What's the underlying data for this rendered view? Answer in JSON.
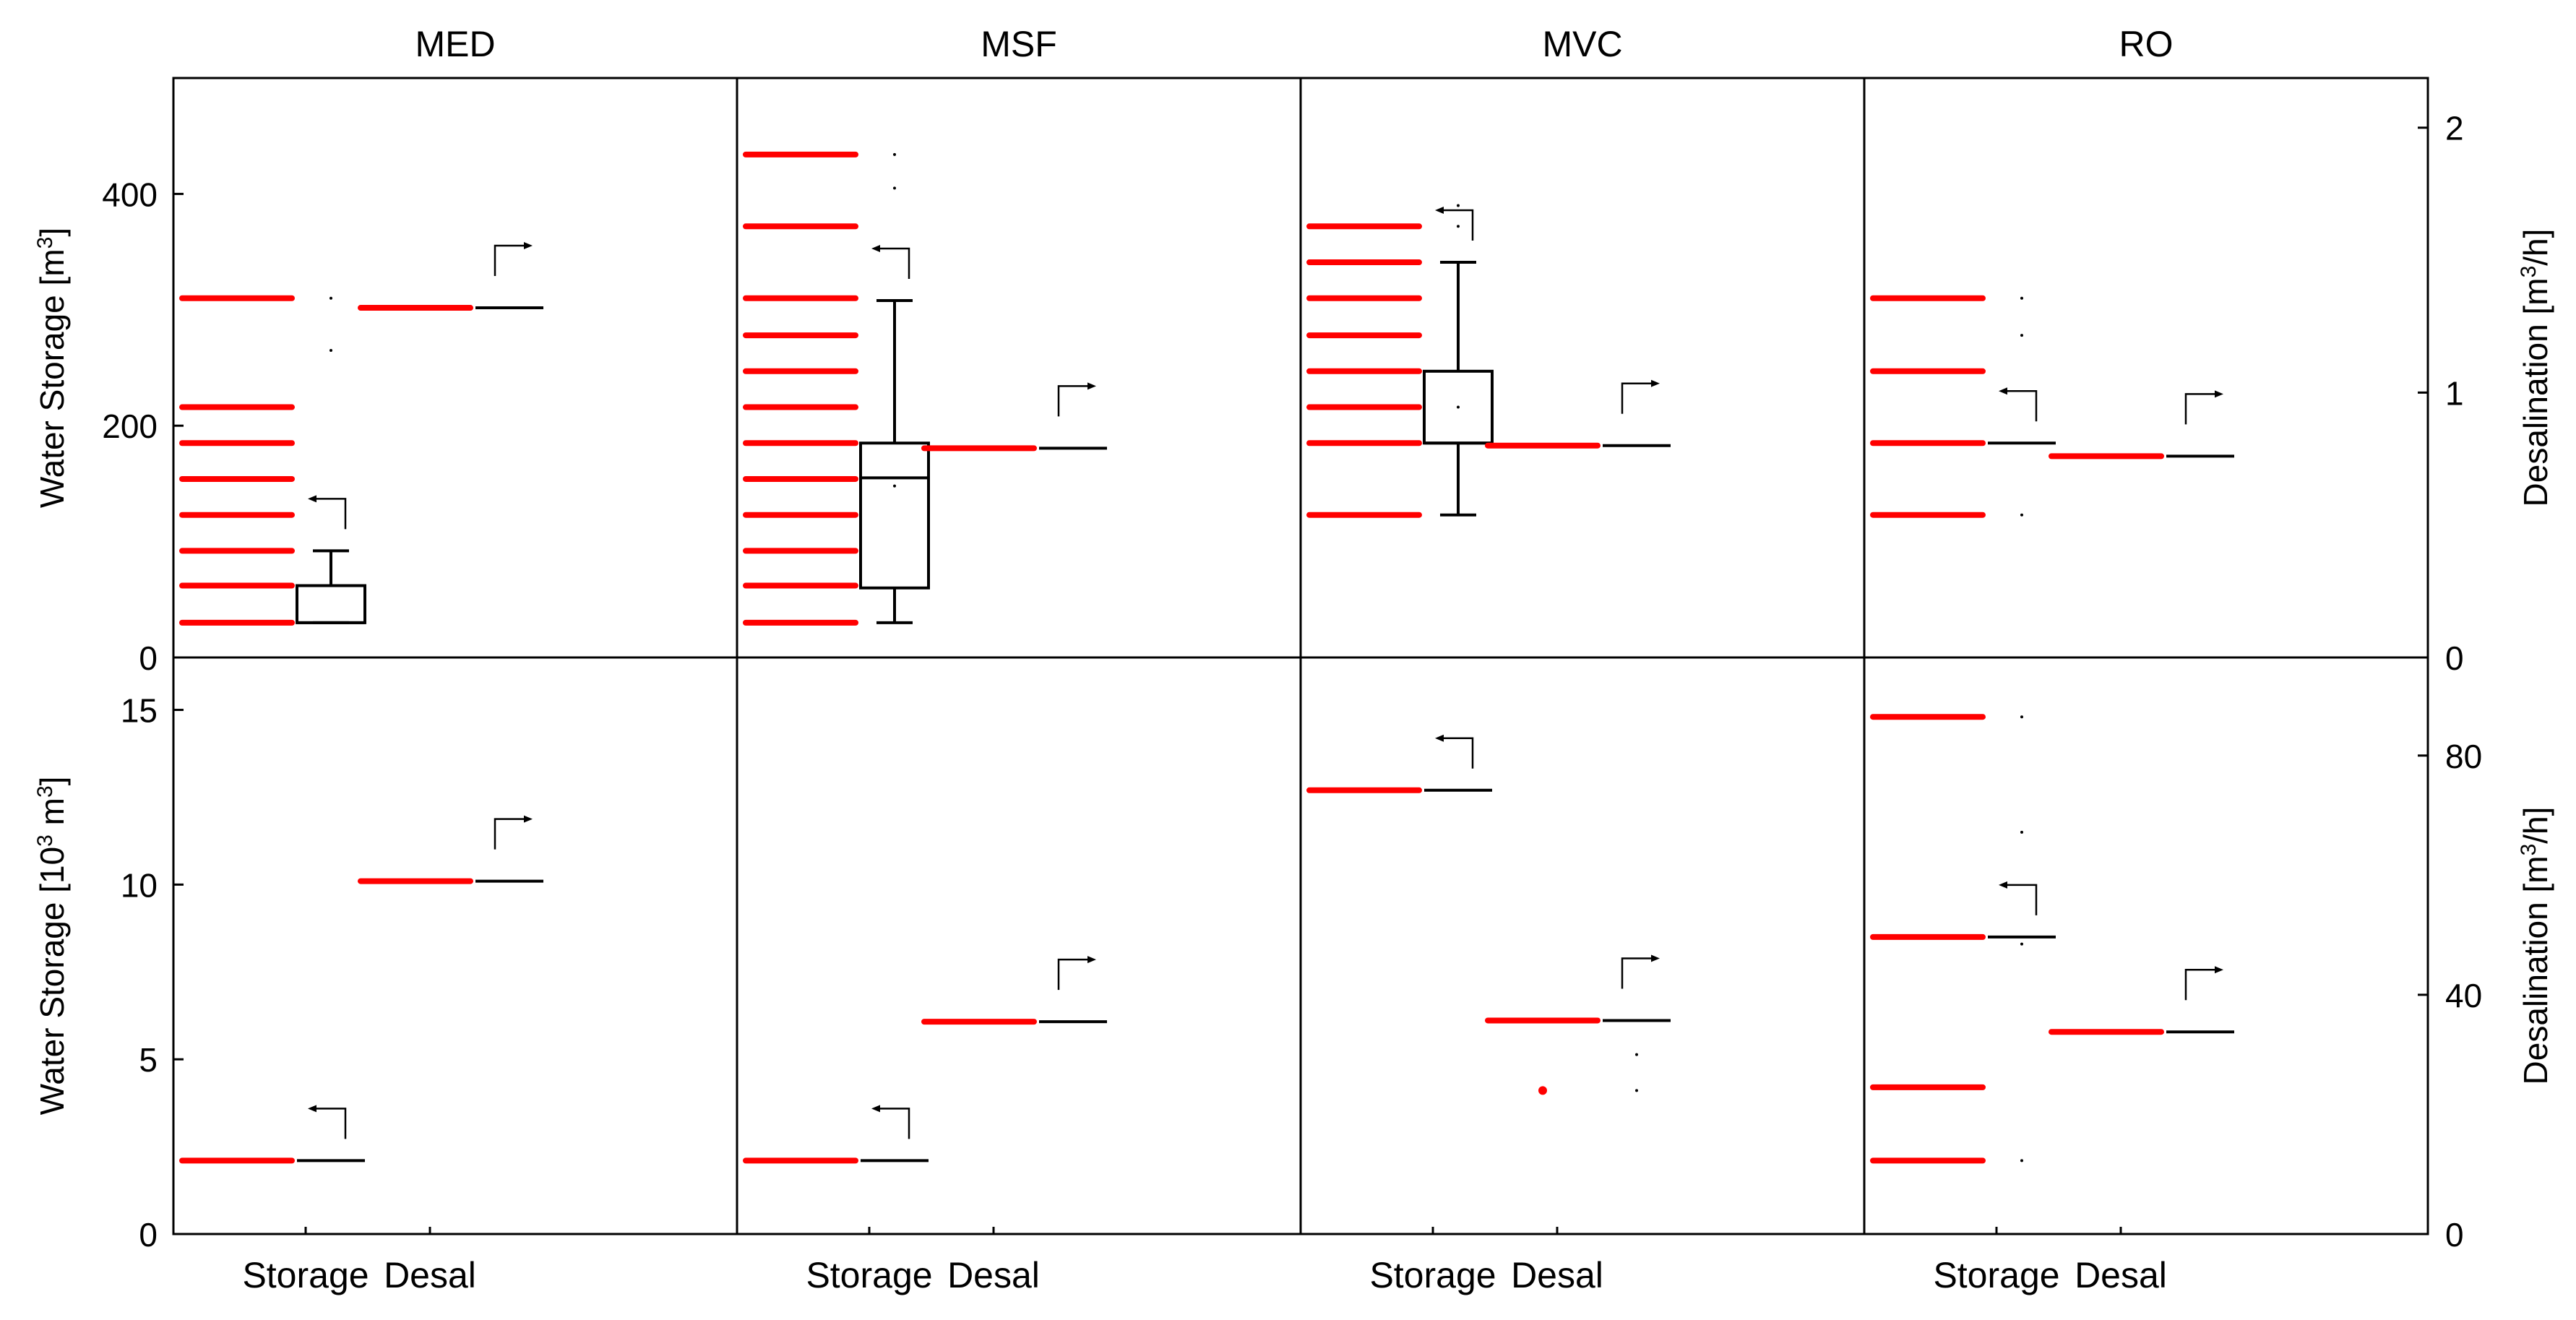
{
  "figure": {
    "columns": [
      "MED",
      "MSF",
      "MVC",
      "RO"
    ],
    "x_categories": [
      "Storage",
      "Desal"
    ],
    "colors": {
      "points": "#ff0000",
      "box": "#000000",
      "frame": "#000000",
      "background": "#ffffff"
    }
  },
  "chart_data": [
    {
      "type": "box",
      "row": "top",
      "left_axis": {
        "label_main": "Water Storage [m",
        "label_sup": "3",
        "label_end": "]",
        "ylim": [
          0,
          500
        ],
        "ticks": [
          0,
          200,
          400
        ]
      },
      "right_axis": {
        "label_main": "Desalination [m",
        "label_sup": "3",
        "label_end": "/h]",
        "ylim": [
          0,
          2.1875
        ],
        "ticks": [
          0,
          1,
          2
        ]
      },
      "panels": [
        {
          "column": "MED",
          "storage": {
            "points": [
              30,
              62,
              92,
              123,
              154,
              185,
              216,
              310
            ],
            "box": {
              "whisker_low": 30,
              "q1": 30,
              "median": 30,
              "q3": 62,
              "whisker_high": 92,
              "outliers": [
                265,
                310
              ]
            }
          },
          "desal": {
            "value": 1.32
          }
        },
        {
          "column": "MSF",
          "storage": {
            "points": [
              30,
              62,
              92,
              123,
              154,
              185,
              216,
              247,
              278,
              310,
              372,
              434
            ],
            "box": {
              "whisker_low": 30,
              "q1": 60,
              "median": 155,
              "q3": 185,
              "whisker_high": 308,
              "mean": 148,
              "outliers": [
                405,
                434
              ]
            }
          },
          "desal": {
            "value": 0.79
          }
        },
        {
          "column": "MVC",
          "storage": {
            "points": [
              123,
              185,
              216,
              247,
              278,
              310,
              341,
              372
            ],
            "box": {
              "whisker_low": 123,
              "q1": 185,
              "median": 185,
              "q3": 247,
              "whisker_high": 341,
              "mean": 216,
              "outliers": [
                372,
                390
              ]
            }
          },
          "desal": {
            "value": 0.8
          }
        },
        {
          "column": "RO",
          "storage": {
            "points": [
              123,
              185,
              247,
              310
            ],
            "box": {
              "whisker_low": 123,
              "q1": 185,
              "median": 185,
              "q3": 185,
              "whisker_high": 185,
              "outliers": [
                123,
                278,
                310
              ]
            }
          },
          "desal": {
            "value": 0.76
          }
        }
      ]
    },
    {
      "type": "box",
      "row": "bottom",
      "left_axis": {
        "label_main": "Water Storage [10",
        "label_sup": "3",
        "label_mid": " m",
        "label_sup2": "3",
        "label_end": "]",
        "ylim": [
          0,
          16.5
        ],
        "ticks": [
          0,
          5,
          10,
          15
        ]
      },
      "right_axis": {
        "label_main": "Desalination [m",
        "label_sup": "3",
        "label_end": "/h]",
        "ylim": [
          0,
          96.4
        ],
        "ticks": [
          0,
          40,
          80
        ]
      },
      "panels": [
        {
          "column": "MED",
          "storage": {
            "points": [
              2.1
            ],
            "box": {
              "median": 2.1
            }
          },
          "desal": {
            "value": 59
          }
        },
        {
          "column": "MSF",
          "storage": {
            "points": [
              2.1
            ],
            "box": {
              "median": 2.1
            }
          },
          "desal": {
            "value": 35.5
          }
        },
        {
          "column": "MVC",
          "storage": {
            "points": [
              12.7
            ],
            "box": {
              "median": 12.7
            }
          },
          "desal": {
            "value": 35.7,
            "points": [
              24
            ],
            "outliers": [
              24,
              30
            ]
          }
        },
        {
          "column": "RO",
          "storage": {
            "points": [
              2.1,
              4.2,
              8.5,
              14.8
            ],
            "box": {
              "median": 8.5,
              "outliers": [
                2.1,
                8.3,
                11.5,
                14.8
              ]
            }
          },
          "desal": {
            "value": 33.8
          }
        }
      ]
    }
  ]
}
